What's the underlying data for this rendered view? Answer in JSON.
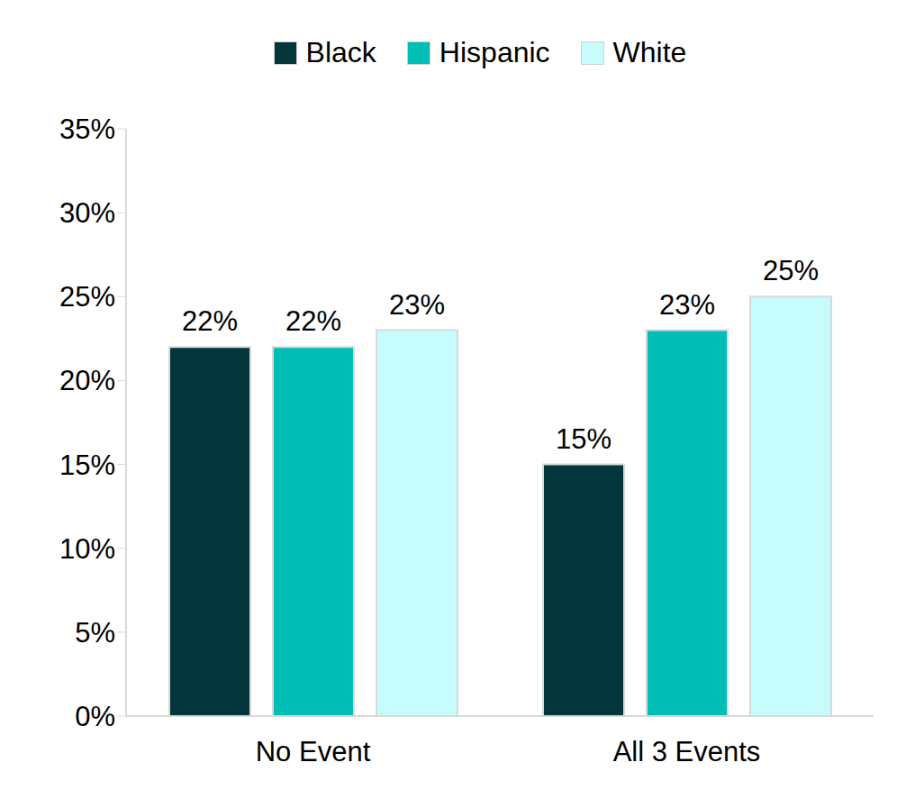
{
  "chart_data": {
    "type": "bar",
    "categories": [
      "No Event",
      "All 3 Events"
    ],
    "series": [
      {
        "name": "Black",
        "color": "#02363a",
        "values": [
          22,
          15
        ],
        "value_labels": [
          "22%",
          "15%"
        ]
      },
      {
        "name": "Hispanic",
        "color": "#00bdb6",
        "values": [
          22,
          23
        ],
        "value_labels": [
          "22%",
          "23%"
        ]
      },
      {
        "name": "White",
        "color": "#c6fcfc",
        "values": [
          23,
          25
        ],
        "value_labels": [
          "23%",
          "25%"
        ]
      }
    ],
    "ylim": [
      0,
      35
    ],
    "yticks": [
      {
        "value": 0,
        "label": "0%"
      },
      {
        "value": 5,
        "label": "5%"
      },
      {
        "value": 10,
        "label": "10%"
      },
      {
        "value": 15,
        "label": "15%"
      },
      {
        "value": 20,
        "label": "20%"
      },
      {
        "value": 25,
        "label": "25%"
      },
      {
        "value": 30,
        "label": "30%"
      },
      {
        "value": 35,
        "label": "35%"
      }
    ],
    "grid": false,
    "legend": "top",
    "data_labels": true
  }
}
